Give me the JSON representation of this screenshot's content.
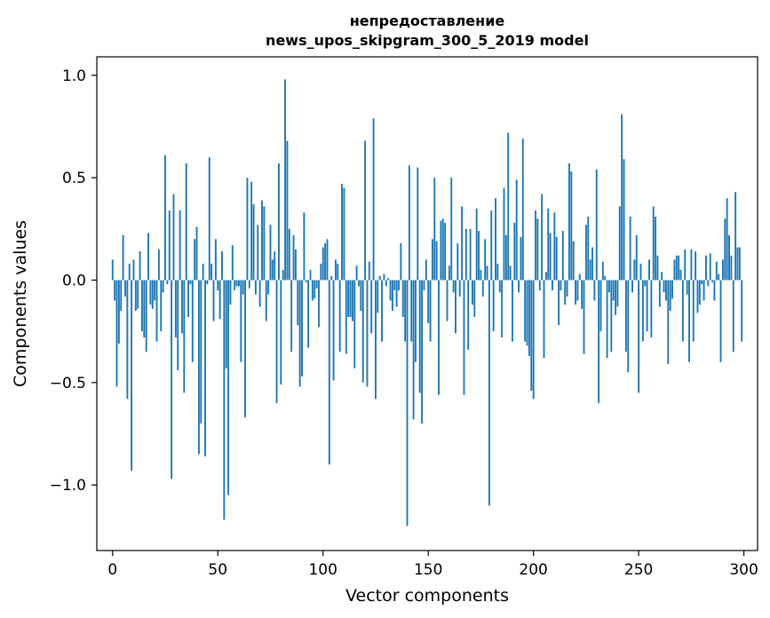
{
  "chart_data": {
    "type": "bar",
    "title_line1": "непредоставление",
    "title_line2": "news_upos_skipgram_300_5_2019 model",
    "xlabel": "Vector components",
    "ylabel": "Components values",
    "xlim": [
      -7.5,
      306.5
    ],
    "ylim": [
      -1.32,
      1.09
    ],
    "xticks": [
      0,
      50,
      100,
      150,
      200,
      250,
      300
    ],
    "xtick_labels": [
      "0",
      "50",
      "100",
      "150",
      "200",
      "250",
      "300"
    ],
    "yticks": [
      -1.0,
      -0.5,
      0.0,
      0.5,
      1.0
    ],
    "ytick_labels": [
      "−1.0",
      "−0.5",
      "0.0",
      "0.5",
      "1.0"
    ],
    "bar_color": "#1f77b4",
    "grid": false,
    "legend": "none",
    "x": "0..299 (one bar per vector component)",
    "values": [
      0.1,
      -0.1,
      -0.52,
      -0.31,
      -0.15,
      0.22,
      -0.08,
      -0.58,
      0.08,
      -0.93,
      0.1,
      -0.15,
      -0.14,
      0.14,
      -0.25,
      -0.28,
      -0.35,
      0.23,
      -0.12,
      -0.14,
      -0.1,
      -0.3,
      0.15,
      -0.25,
      -0.06,
      0.61,
      -0.02,
      0.34,
      -0.97,
      0.42,
      -0.28,
      -0.44,
      0.34,
      -0.26,
      -0.55,
      0.57,
      -0.18,
      -0.02,
      -0.4,
      0.2,
      0.26,
      -0.85,
      -0.7,
      0.08,
      -0.86,
      -0.02,
      0.6,
      0.08,
      -0.2,
      0.2,
      -0.05,
      -0.19,
      0.14,
      -1.17,
      -0.43,
      -1.05,
      -0.12,
      0.17,
      -0.05,
      -0.03,
      -0.03,
      -0.4,
      -0.07,
      -0.67,
      0.5,
      -0.04,
      0.48,
      0.37,
      -0.07,
      0.27,
      -0.13,
      0.39,
      0.36,
      -0.2,
      -0.07,
      0.27,
      0.1,
      0.14,
      -0.6,
      0.57,
      -0.51,
      0.05,
      0.98,
      0.68,
      0.25,
      -0.35,
      0.22,
      0.15,
      -0.22,
      -0.52,
      -0.47,
      0.33,
      -0.01,
      -0.33,
      0.05,
      -0.1,
      -0.09,
      -0.04,
      -0.23,
      0.08,
      0.16,
      0.18,
      0.2,
      -0.9,
      0.02,
      -0.49,
      0.1,
      0.08,
      -0.35,
      0.47,
      0.45,
      -0.36,
      -0.18,
      -0.18,
      -0.2,
      -0.43,
      0.07,
      -0.03,
      -0.15,
      -0.5,
      0.68,
      -0.52,
      0.09,
      -0.26,
      0.79,
      -0.58,
      -0.16,
      0.02,
      -0.3,
      0.03,
      -0.03,
      0.01,
      -0.1,
      -0.15,
      -0.05,
      -0.13,
      -0.05,
      0.18,
      -0.18,
      -0.3,
      -1.2,
      0.56,
      -0.3,
      -0.68,
      -0.4,
      0.55,
      -0.55,
      -0.7,
      -0.05,
      0.1,
      -0.21,
      -0.3,
      0.2,
      0.5,
      0.19,
      -0.56,
      0.29,
      0.3,
      0.28,
      -0.2,
      0.07,
      0.5,
      -0.06,
      -0.26,
      0.18,
      -0.08,
      0.36,
      -0.56,
      0.25,
      -0.34,
      0.25,
      -0.12,
      -0.18,
      0.35,
      0.24,
      0.05,
      -0.08,
      0.2,
      0.07,
      -1.1,
      0.34,
      -0.25,
      0.4,
      0.08,
      -0.06,
      -0.28,
      0.45,
      0.22,
      0.72,
      0.07,
      -0.3,
      0.28,
      0.49,
      -0.06,
      0.21,
      0.69,
      -0.3,
      -0.32,
      -0.37,
      -0.54,
      -0.58,
      0.34,
      0.3,
      -0.05,
      0.42,
      -0.38,
      0.04,
      0.35,
      0.23,
      -0.05,
      0.33,
      0.21,
      -0.22,
      -0.05,
      0.24,
      -0.12,
      -0.08,
      0.57,
      0.53,
      0.19,
      -0.12,
      -0.1,
      0.03,
      -0.14,
      -0.36,
      0.27,
      0.31,
      0.1,
      0.16,
      -0.1,
      0.54,
      -0.6,
      -0.25,
      0.09,
      0.02,
      -0.38,
      -0.06,
      -0.35,
      -0.1,
      -0.17,
      -0.13,
      0.36,
      0.81,
      0.59,
      -0.35,
      -0.45,
      0.31,
      -0.06,
      0.1,
      0.22,
      -0.55,
      0.08,
      -0.3,
      -0.03,
      -0.25,
      0.1,
      -0.28,
      0.36,
      0.31,
      0.12,
      -0.13,
      0.04,
      -0.06,
      -0.1,
      -0.41,
      -0.15,
      -0.09,
      0.1,
      0.12,
      0.12,
      0.05,
      -0.3,
      0.15,
      -0.07,
      -0.4,
      0.15,
      -0.3,
      0.14,
      -0.16,
      -0.12,
      -0.02,
      -0.1,
      0.12,
      -0.03,
      0.13,
      -0.01,
      -0.1,
      0.09,
      0.03,
      -0.4,
      0.1,
      0.3,
      0.4,
      0.22,
      0.12,
      -0.35,
      0.43,
      0.16,
      0.16,
      -0.3
    ]
  }
}
